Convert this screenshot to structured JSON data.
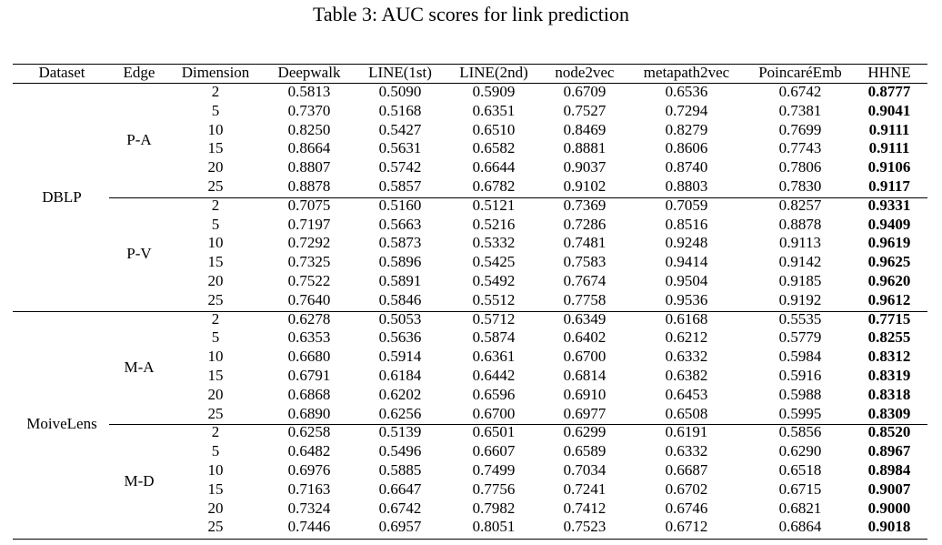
{
  "title": "Table 3: AUC scores for link prediction",
  "headers": [
    "Dataset",
    "Edge",
    "Dimension",
    "Deepwalk",
    "LINE(1st)",
    "LINE(2nd)",
    "node2vec",
    "metapath2vec",
    "PoincaréEmb",
    "HHNE"
  ],
  "datasets": [
    {
      "name": "DBLP",
      "edges": [
        {
          "name": "P-A",
          "rows": [
            [
              "2",
              "0.5813",
              "0.5090",
              "0.5909",
              "0.6709",
              "0.6536",
              "0.6742",
              "0.8777"
            ],
            [
              "5",
              "0.7370",
              "0.5168",
              "0.6351",
              "0.7527",
              "0.7294",
              "0.7381",
              "0.9041"
            ],
            [
              "10",
              "0.8250",
              "0.5427",
              "0.6510",
              "0.8469",
              "0.8279",
              "0.7699",
              "0.9111"
            ],
            [
              "15",
              "0.8664",
              "0.5631",
              "0.6582",
              "0.8881",
              "0.8606",
              "0.7743",
              "0.9111"
            ],
            [
              "20",
              "0.8807",
              "0.5742",
              "0.6644",
              "0.9037",
              "0.8740",
              "0.7806",
              "0.9106"
            ],
            [
              "25",
              "0.8878",
              "0.5857",
              "0.6782",
              "0.9102",
              "0.8803",
              "0.7830",
              "0.9117"
            ]
          ]
        },
        {
          "name": "P-V",
          "rows": [
            [
              "2",
              "0.7075",
              "0.5160",
              "0.5121",
              "0.7369",
              "0.7059",
              "0.8257",
              "0.9331"
            ],
            [
              "5",
              "0.7197",
              "0.5663",
              "0.5216",
              "0.7286",
              "0.8516",
              "0.8878",
              "0.9409"
            ],
            [
              "10",
              "0.7292",
              "0.5873",
              "0.5332",
              "0.7481",
              "0.9248",
              "0.9113",
              "0.9619"
            ],
            [
              "15",
              "0.7325",
              "0.5896",
              "0.5425",
              "0.7583",
              "0.9414",
              "0.9142",
              "0.9625"
            ],
            [
              "20",
              "0.7522",
              "0.5891",
              "0.5492",
              "0.7674",
              "0.9504",
              "0.9185",
              "0.9620"
            ],
            [
              "25",
              "0.7640",
              "0.5846",
              "0.5512",
              "0.7758",
              "0.9536",
              "0.9192",
              "0.9612"
            ]
          ]
        }
      ]
    },
    {
      "name": "MoiveLens",
      "edges": [
        {
          "name": "M-A",
          "rows": [
            [
              "2",
              "0.6278",
              "0.5053",
              "0.5712",
              "0.6349",
              "0.6168",
              "0.5535",
              "0.7715"
            ],
            [
              "5",
              "0.6353",
              "0.5636",
              "0.5874",
              "0.6402",
              "0.6212",
              "0.5779",
              "0.8255"
            ],
            [
              "10",
              "0.6680",
              "0.5914",
              "0.6361",
              "0.6700",
              "0.6332",
              "0.5984",
              "0.8312"
            ],
            [
              "15",
              "0.6791",
              "0.6184",
              "0.6442",
              "0.6814",
              "0.6382",
              "0.5916",
              "0.8319"
            ],
            [
              "20",
              "0.6868",
              "0.6202",
              "0.6596",
              "0.6910",
              "0.6453",
              "0.5988",
              "0.8318"
            ],
            [
              "25",
              "0.6890",
              "0.6256",
              "0.6700",
              "0.6977",
              "0.6508",
              "0.5995",
              "0.8309"
            ]
          ]
        },
        {
          "name": "M-D",
          "rows": [
            [
              "2",
              "0.6258",
              "0.5139",
              "0.6501",
              "0.6299",
              "0.6191",
              "0.5856",
              "0.8520"
            ],
            [
              "5",
              "0.6482",
              "0.5496",
              "0.6607",
              "0.6589",
              "0.6332",
              "0.6290",
              "0.8967"
            ],
            [
              "10",
              "0.6976",
              "0.5885",
              "0.7499",
              "0.7034",
              "0.6687",
              "0.6518",
              "0.8984"
            ],
            [
              "15",
              "0.7163",
              "0.6647",
              "0.7756",
              "0.7241",
              "0.6702",
              "0.6715",
              "0.9007"
            ],
            [
              "20",
              "0.7324",
              "0.6742",
              "0.7982",
              "0.7412",
              "0.6746",
              "0.6821",
              "0.9000"
            ],
            [
              "25",
              "0.7446",
              "0.6957",
              "0.8051",
              "0.7523",
              "0.6712",
              "0.6864",
              "0.9018"
            ]
          ]
        }
      ]
    }
  ]
}
